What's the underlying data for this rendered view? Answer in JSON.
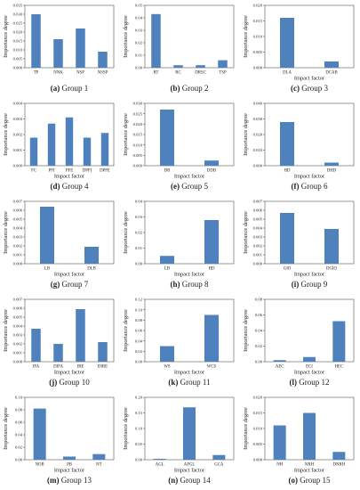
{
  "chart_data": [
    {
      "type": "bar",
      "caption_label": "(a)",
      "caption_text": "Group 1",
      "categories": [
        "TP",
        "NNK",
        "NSP",
        "NSSP"
      ],
      "values": [
        0.03,
        0.016,
        0.022,
        0.009
      ],
      "ylim": [
        0,
        0.035
      ],
      "yticks": [
        "0.000",
        "0.005",
        "0.010",
        "0.015",
        "0.020",
        "0.025",
        "0.030",
        "0.035"
      ],
      "xlabel": "",
      "ylabel": "Importance degree"
    },
    {
      "type": "bar",
      "caption_label": "(b)",
      "caption_text": "Group 2",
      "categories": [
        "RT",
        "RC",
        "DRSC",
        "TSP"
      ],
      "values": [
        0.043,
        0.002,
        0.002,
        0.006
      ],
      "ylim": [
        0,
        0.05
      ],
      "yticks": [
        "0.00",
        "0.01",
        "0.02",
        "0.03",
        "0.04",
        "0.05"
      ],
      "xlabel": "",
      "ylabel": "Importance degree"
    },
    {
      "type": "bar",
      "caption_label": "(c)",
      "caption_text": "Group 3",
      "categories": [
        "DLA",
        "DCAB"
      ],
      "values": [
        0.016,
        0.002
      ],
      "ylim": [
        0,
        0.02
      ],
      "yticks": [
        "0.000",
        "0.005",
        "0.010",
        "0.015",
        "0.020"
      ],
      "xlabel": "Impact factor",
      "ylabel": "Importance degree"
    },
    {
      "type": "bar",
      "caption_label": "(d)",
      "caption_text": "Group 4",
      "categories": [
        "FC",
        "PFI",
        "PFE",
        "DPFI",
        "DPFE"
      ],
      "values": [
        0.0018,
        0.0027,
        0.0031,
        0.0018,
        0.0021
      ],
      "ylim": [
        0,
        0.004
      ],
      "yticks": [
        "0.000",
        "0.001",
        "0.002",
        "0.003",
        "0.004"
      ],
      "xlabel": "Impact factor",
      "ylabel": "Importance degree"
    },
    {
      "type": "bar",
      "caption_label": "(e)",
      "caption_text": "Group 5",
      "categories": [
        "DB",
        "DDB"
      ],
      "values": [
        0.027,
        0.0025
      ],
      "ylim": [
        0,
        0.03
      ],
      "yticks": [
        "0.000",
        "0.005",
        "0.010",
        "0.015",
        "0.020",
        "0.025",
        "0.030"
      ],
      "xlabel": "Impact factor",
      "ylabel": "Importance degree"
    },
    {
      "type": "bar",
      "caption_label": "(f)",
      "caption_text": "Group 6",
      "categories": [
        "HD",
        "DHD"
      ],
      "values": [
        0.028,
        0.002
      ],
      "ylim": [
        0,
        0.04
      ],
      "yticks": [
        "0.000",
        "0.010",
        "0.020",
        "0.030",
        "0.040"
      ],
      "xlabel": "Impact factor",
      "ylabel": "Importance degree"
    },
    {
      "type": "bar",
      "caption_label": "(g)",
      "caption_text": "Group 7",
      "categories": [
        "LB",
        "DLB"
      ],
      "values": [
        0.0064,
        0.0019
      ],
      "ylim": [
        0,
        0.007
      ],
      "yticks": [
        "0.000",
        "0.001",
        "0.002",
        "0.003",
        "0.004",
        "0.005",
        "0.006",
        "0.007"
      ],
      "xlabel": "Impact factor",
      "ylabel": "Importance degree"
    },
    {
      "type": "bar",
      "caption_label": "(h)",
      "caption_text": "Group 8",
      "categories": [
        "LB",
        "HD"
      ],
      "values": [
        0.005,
        0.028
      ],
      "ylim": [
        0,
        0.04
      ],
      "yticks": [
        "0.00",
        "0.01",
        "0.02",
        "0.03",
        "0.04"
      ],
      "xlabel": "Impact factor",
      "ylabel": "Importance degree"
    },
    {
      "type": "bar",
      "caption_label": "(i)",
      "caption_text": "Group 9",
      "categories": [
        "GIO",
        "DGIO"
      ],
      "values": [
        0.0057,
        0.0039
      ],
      "ylim": [
        0,
        0.007
      ],
      "yticks": [
        "0.000",
        "0.001",
        "0.002",
        "0.003",
        "0.004",
        "0.005",
        "0.006",
        "0.007"
      ],
      "xlabel": "Impact factor",
      "ylabel": "Importance degree"
    },
    {
      "type": "bar",
      "caption_label": "(j)",
      "caption_text": "Group 10",
      "categories": [
        "IFA",
        "DIFA",
        "IRE",
        "DIRE"
      ],
      "values": [
        0.0037,
        0.002,
        0.0059,
        0.0022
      ],
      "ylim": [
        0,
        0.007
      ],
      "yticks": [
        "0.000",
        "0.001",
        "0.002",
        "0.003",
        "0.004",
        "0.005",
        "0.006",
        "0.007"
      ],
      "xlabel": "Impact factor",
      "ylabel": "Importance degree"
    },
    {
      "type": "bar",
      "caption_label": "(k)",
      "caption_text": "Group 11",
      "categories": [
        "WS",
        "WCS"
      ],
      "values": [
        0.03,
        0.09
      ],
      "ylim": [
        0,
        0.12
      ],
      "yticks": [
        "0.00",
        "0.02",
        "0.04",
        "0.06",
        "0.08",
        "0.10",
        "0.12"
      ],
      "xlabel": "Impact factor",
      "ylabel": "Importance degree"
    },
    {
      "type": "bar",
      "caption_label": "(l)",
      "caption_text": "Group 12",
      "categories": [
        "AEC",
        "ECI",
        "HEC"
      ],
      "values": [
        0.002,
        0.006,
        0.052
      ],
      "ylim": [
        0,
        0.08
      ],
      "yticks": [
        "0.00",
        "0.02",
        "0.04",
        "0.06",
        "0.08"
      ],
      "xlabel": "Impact factor",
      "ylabel": "Importance degree"
    },
    {
      "type": "bar",
      "caption_label": "(m)",
      "caption_text": "Group 13",
      "categories": [
        "NOB",
        "PB",
        "NT"
      ],
      "values": [
        0.082,
        0.005,
        0.009
      ],
      "ylim": [
        0,
        0.1
      ],
      "yticks": [
        "0.00",
        "0.02",
        "0.04",
        "0.06",
        "0.08",
        "0.10"
      ],
      "xlabel": "Impact factor",
      "ylabel": "Importance degree"
    },
    {
      "type": "bar",
      "caption_label": "(n)",
      "caption_text": "Group 14",
      "categories": [
        "AGL",
        "APGL",
        "GCA"
      ],
      "values": [
        0.003,
        0.168,
        0.015
      ],
      "ylim": [
        0,
        0.2
      ],
      "yticks": [
        "0.00",
        "0.05",
        "0.10",
        "0.15",
        "0.20"
      ],
      "xlabel": "Impact factor",
      "ylabel": "Importance degree"
    },
    {
      "type": "bar",
      "caption_label": "(o)",
      "caption_text": "Group 15",
      "categories": [
        "NH",
        "NRH",
        "DNRH"
      ],
      "values": [
        0.011,
        0.015,
        0.0025
      ],
      "ylim": [
        0,
        0.02
      ],
      "yticks": [
        "0.000",
        "0.005",
        "0.010",
        "0.015",
        "0.020"
      ],
      "xlabel": "Impact factor",
      "ylabel": "Importance degree"
    }
  ],
  "colors": {
    "bar": "#4f81bd",
    "axis": "#555555",
    "text": "#222222"
  }
}
